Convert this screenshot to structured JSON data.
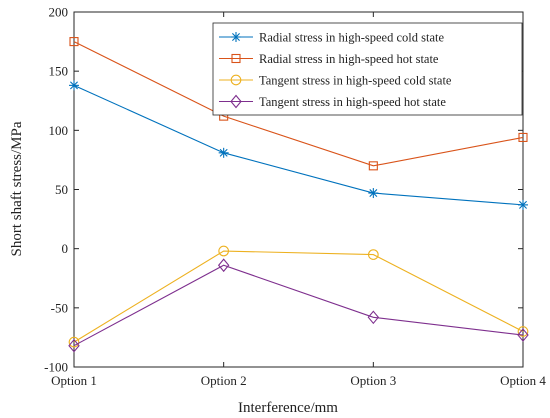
{
  "chart_data": {
    "type": "line",
    "title": "",
    "xlabel": "Interference/mm",
    "ylabel": "Short shaft stress/MPa",
    "categories": [
      "Option 1",
      "Option 2",
      "Option 3",
      "Option 4"
    ],
    "ylim": [
      -100,
      200
    ],
    "yticks": [
      -100,
      -50,
      0,
      50,
      100,
      150,
      200
    ],
    "grid": false,
    "legend_position": "top-right",
    "series": [
      {
        "name": "Radial stress in high-speed cold state",
        "values": [
          138,
          81,
          47,
          37
        ],
        "color": "#0072bd",
        "marker": "asterisk"
      },
      {
        "name": "Radial stress in high-speed hot state",
        "values": [
          175,
          112,
          70,
          94
        ],
        "color": "#d95319",
        "marker": "square"
      },
      {
        "name": "Tangent stress in high-speed cold state",
        "values": [
          -79,
          -2,
          -5,
          -70
        ],
        "color": "#edb120",
        "marker": "circle"
      },
      {
        "name": "Tangent stress in high-speed hot state",
        "values": [
          -82,
          -14,
          -58,
          -73
        ],
        "color": "#7e2f8e",
        "marker": "diamond"
      }
    ]
  }
}
